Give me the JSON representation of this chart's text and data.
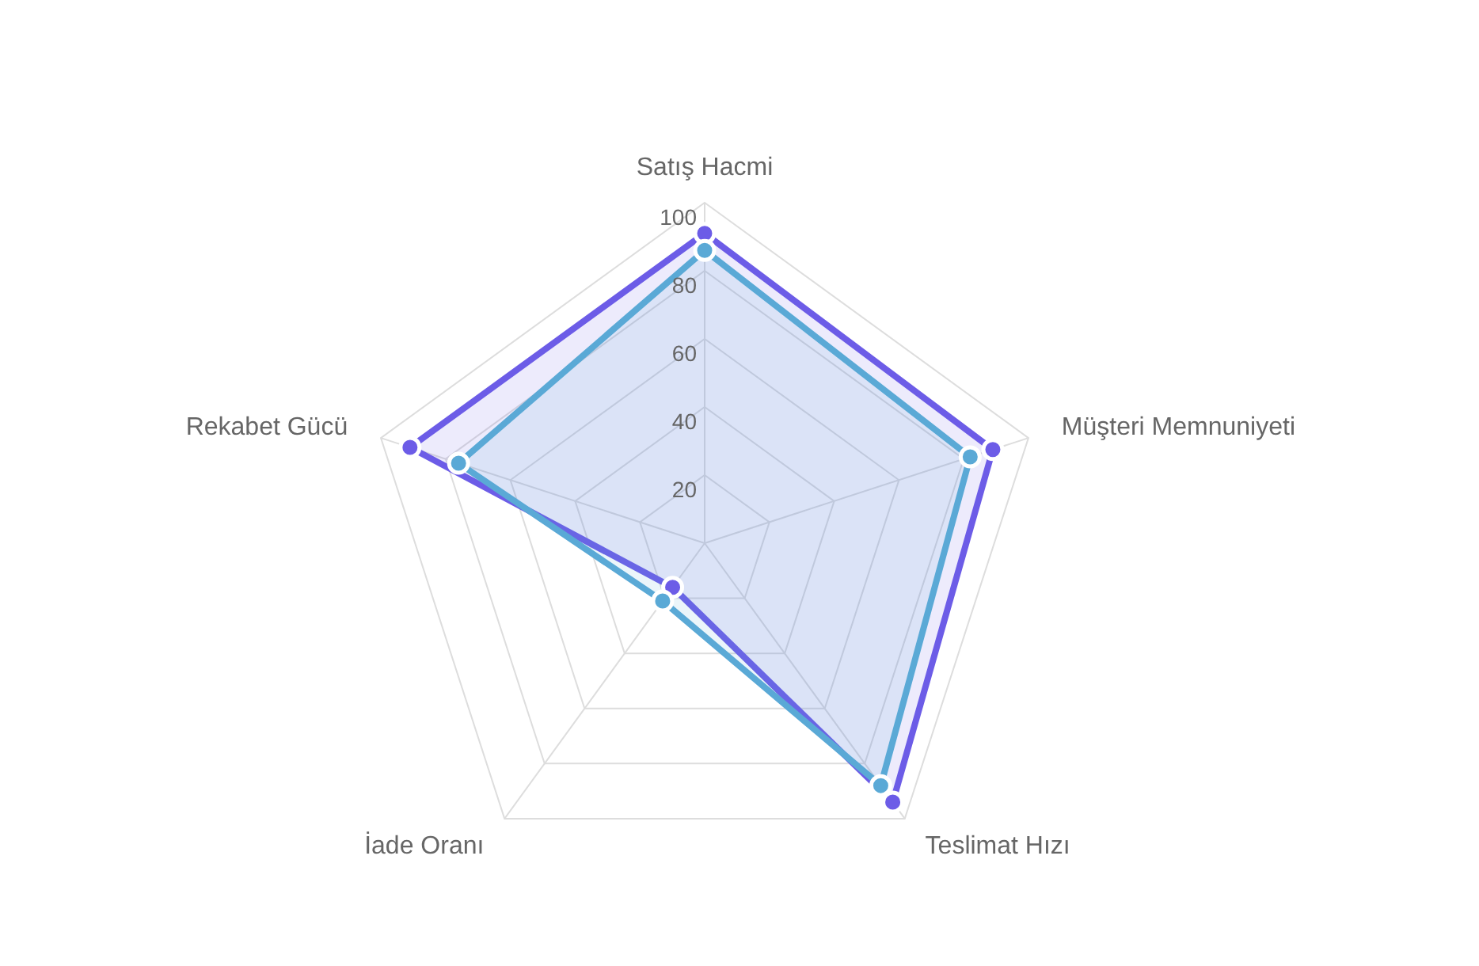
{
  "chart_data": {
    "type": "radar",
    "categories": [
      "Satış Hacmi",
      "Müşteri Memnuniyeti",
      "Teslimat Hızı",
      "İade Oranı",
      "Rekabet Gücü"
    ],
    "series": [
      {
        "color": "#6c5ce7",
        "values": [
          91,
          89,
          94,
          16,
          91
        ]
      },
      {
        "color": "#5aa9d6",
        "values": [
          86,
          82,
          88,
          21,
          76
        ]
      }
    ],
    "ylim": [
      0,
      100
    ],
    "yticks": [
      20,
      40,
      60,
      80,
      100
    ],
    "grid": true,
    "marker": "circle",
    "legend": false
  }
}
